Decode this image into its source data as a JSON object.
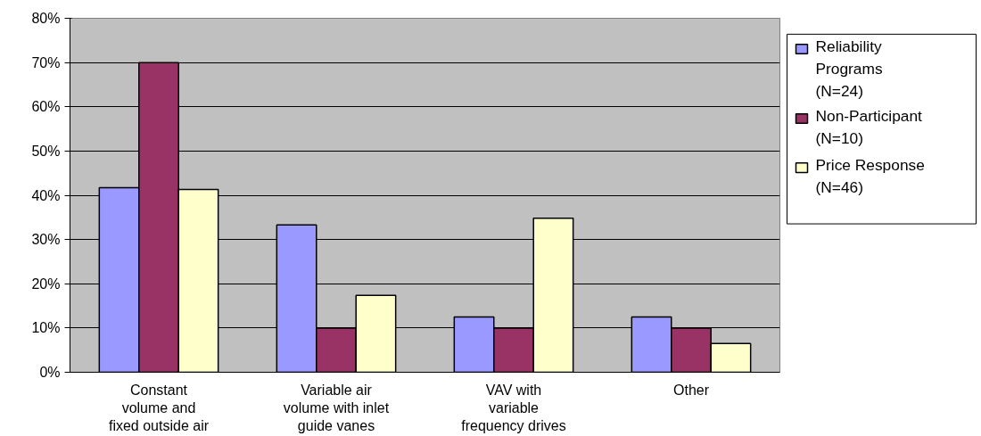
{
  "chart_data": {
    "type": "bar",
    "categories": [
      "Constant\nvolume and\nfixed outside air",
      "Variable air\nvolume with inlet\nguide vanes",
      "VAV with\nvariable\nfrequency drives",
      "Other"
    ],
    "series": [
      {
        "name": "Reliability\nPrograms\n(N=24)",
        "color": "#9999ff",
        "values": [
          41.7,
          33.3,
          12.5,
          12.5
        ]
      },
      {
        "name": "Non-Participant\n(N=10)",
        "color": "#993366",
        "values": [
          70,
          10,
          10,
          10
        ]
      },
      {
        "name": "Price Response\n(N=46)",
        "color": "#ffffcc",
        "values": [
          41.3,
          17.4,
          34.8,
          6.5
        ]
      }
    ],
    "ylim": [
      0,
      80
    ],
    "yticks": [
      {
        "value": 0,
        "label": "0%"
      },
      {
        "value": 10,
        "label": "10%"
      },
      {
        "value": 20,
        "label": "20%"
      },
      {
        "value": 30,
        "label": "30%"
      },
      {
        "value": 40,
        "label": "40%"
      },
      {
        "value": 50,
        "label": "50%"
      },
      {
        "value": 60,
        "label": "60%"
      },
      {
        "value": 70,
        "label": "70%"
      },
      {
        "value": 80,
        "label": "80%"
      }
    ],
    "grid": "y",
    "legend": "right"
  }
}
